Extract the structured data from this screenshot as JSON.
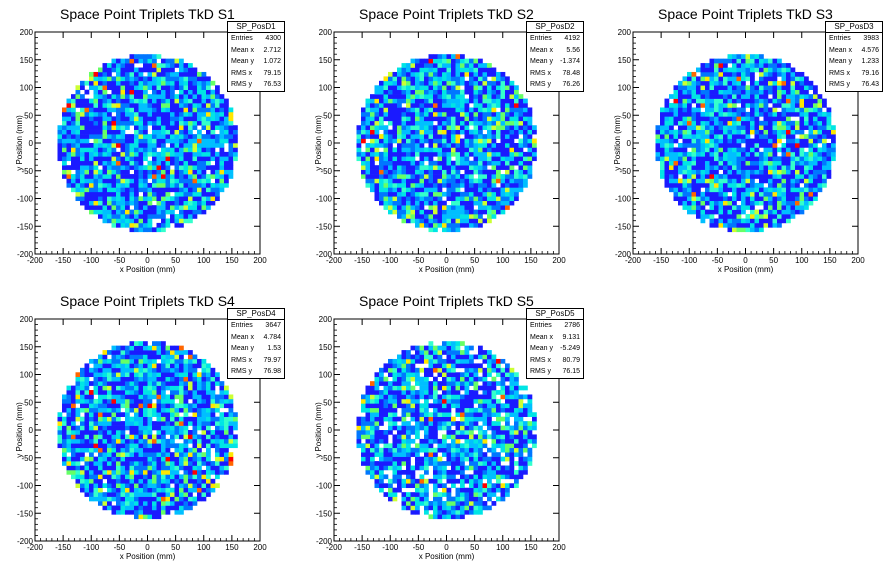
{
  "chart_data": [
    {
      "type": "heatmap",
      "title": "Space Point Triplets TkD S1",
      "xlabel": "x Position (mm)",
      "ylabel": "y Position (mm)",
      "xlim": [
        -200,
        200
      ],
      "ylim": [
        -200,
        200
      ],
      "x_ticks": [
        "-200",
        "-150",
        "-100",
        "-50",
        "0",
        "50",
        "100",
        "150",
        "200"
      ],
      "y_ticks": [
        "200",
        "150",
        "100",
        "50",
        "0",
        "-50",
        "-100",
        "-150",
        "-200"
      ],
      "distribution": {
        "shape": "disk",
        "radius": 160,
        "bin_width": 8
      },
      "stats": {
        "name": "SP_PosD1",
        "rows": [
          {
            "label": "Entries",
            "value": "4300"
          },
          {
            "label": "Mean x",
            "value": "2.712"
          },
          {
            "label": "Mean y",
            "value": "1.072"
          },
          {
            "label": "RMS x",
            "value": "79.15"
          },
          {
            "label": "RMS y",
            "value": "76.53"
          }
        ]
      }
    },
    {
      "type": "heatmap",
      "title": "Space Point Triplets TkD S2",
      "xlabel": "x Position (mm)",
      "ylabel": "y Position (mm)",
      "xlim": [
        -200,
        200
      ],
      "ylim": [
        -200,
        200
      ],
      "x_ticks": [
        "-200",
        "-150",
        "-100",
        "-50",
        "0",
        "50",
        "100",
        "150",
        "200"
      ],
      "y_ticks": [
        "200",
        "150",
        "100",
        "50",
        "0",
        "-50",
        "-100",
        "-150",
        "-200"
      ],
      "distribution": {
        "shape": "disk",
        "radius": 160,
        "bin_width": 8
      },
      "stats": {
        "name": "SP_PosD2",
        "rows": [
          {
            "label": "Entries",
            "value": "4192"
          },
          {
            "label": "Mean x",
            "value": "5.56"
          },
          {
            "label": "Mean y",
            "value": "-1.374"
          },
          {
            "label": "RMS x",
            "value": "78.48"
          },
          {
            "label": "RMS y",
            "value": "76.26"
          }
        ]
      }
    },
    {
      "type": "heatmap",
      "title": "Space Point Triplets TkD S3",
      "xlabel": "x Position (mm)",
      "ylabel": "y Position (mm)",
      "xlim": [
        -200,
        200
      ],
      "ylim": [
        -200,
        200
      ],
      "x_ticks": [
        "-200",
        "-150",
        "-100",
        "-50",
        "0",
        "50",
        "100",
        "150",
        "200"
      ],
      "y_ticks": [
        "200",
        "150",
        "100",
        "50",
        "0",
        "-50",
        "-100",
        "-150",
        "-200"
      ],
      "distribution": {
        "shape": "disk",
        "radius": 160,
        "bin_width": 8
      },
      "stats": {
        "name": "SP_PosD3",
        "rows": [
          {
            "label": "Entries",
            "value": "3983"
          },
          {
            "label": "Mean x",
            "value": "4.576"
          },
          {
            "label": "Mean y",
            "value": "1.233"
          },
          {
            "label": "RMS x",
            "value": "79.16"
          },
          {
            "label": "RMS y",
            "value": "76.43"
          }
        ]
      }
    },
    {
      "type": "heatmap",
      "title": "Space Point Triplets TkD S4",
      "xlabel": "x Position (mm)",
      "ylabel": "y Position (mm)",
      "xlim": [
        -200,
        200
      ],
      "ylim": [
        -200,
        200
      ],
      "x_ticks": [
        "-200",
        "-150",
        "-100",
        "-50",
        "0",
        "50",
        "100",
        "150",
        "200"
      ],
      "y_ticks": [
        "200",
        "150",
        "100",
        "50",
        "0",
        "-50",
        "-100",
        "-150",
        "-200"
      ],
      "distribution": {
        "shape": "disk",
        "radius": 160,
        "bin_width": 8
      },
      "stats": {
        "name": "SP_PosD4",
        "rows": [
          {
            "label": "Entries",
            "value": "3647"
          },
          {
            "label": "Mean x",
            "value": "4.784"
          },
          {
            "label": "Mean y",
            "value": "1.53"
          },
          {
            "label": "RMS x",
            "value": "79.97"
          },
          {
            "label": "RMS y",
            "value": "76.98"
          }
        ]
      }
    },
    {
      "type": "heatmap",
      "title": "Space Point Triplets TkD S5",
      "xlabel": "x Position (mm)",
      "ylabel": "y Position (mm)",
      "xlim": [
        -200,
        200
      ],
      "ylim": [
        -200,
        200
      ],
      "x_ticks": [
        "-200",
        "-150",
        "-100",
        "-50",
        "0",
        "50",
        "100",
        "150",
        "200"
      ],
      "y_ticks": [
        "200",
        "150",
        "100",
        "50",
        "0",
        "-50",
        "-100",
        "-150",
        "-200"
      ],
      "distribution": {
        "shape": "disk",
        "radius": 160,
        "bin_width": 8
      },
      "stats": {
        "name": "SP_PosD5",
        "rows": [
          {
            "label": "Entries",
            "value": "2786"
          },
          {
            "label": "Mean x",
            "value": "9.131"
          },
          {
            "label": "Mean y",
            "value": "-5.249"
          },
          {
            "label": "RMS x",
            "value": "80.79"
          },
          {
            "label": "RMS y",
            "value": "76.15"
          }
        ]
      }
    }
  ],
  "colors": {
    "palette": [
      "#1a1aff",
      "#0077ff",
      "#00bfff",
      "#00e5e5",
      "#33ffcc",
      "#66ff66",
      "#ccff33",
      "#ffe600",
      "#ff6600",
      "#ff0000"
    ]
  }
}
